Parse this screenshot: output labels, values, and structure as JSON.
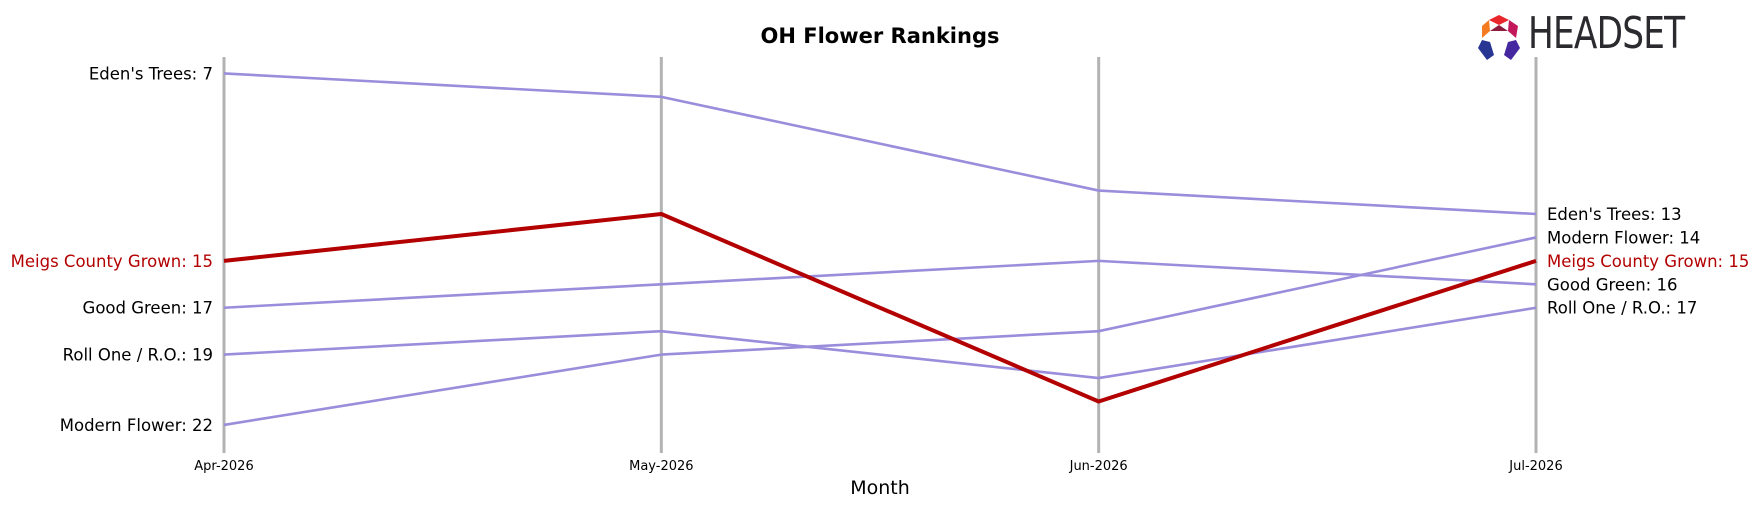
{
  "chart_data": {
    "type": "line",
    "title": "OH Flower Rankings",
    "xlabel": "Month",
    "ylabel": "",
    "categories": [
      "Apr-2026",
      "May-2026",
      "Jun-2026",
      "Jul-2026"
    ],
    "y_inverted": true,
    "ylim": [
      6.3,
      22.9
    ],
    "grid": false,
    "highlight_color": "#b30000",
    "base_color": "#9a8ddb",
    "series": [
      {
        "name": "Eden's Trees",
        "values": [
          7,
          8,
          12,
          13
        ],
        "highlight": false,
        "start_label": "Eden's Trees: 7",
        "end_label": "Eden's Trees: 13"
      },
      {
        "name": "Meigs County Grown",
        "values": [
          15,
          13,
          21,
          15
        ],
        "highlight": true,
        "start_label": "Meigs County Grown: 15",
        "end_label": "Meigs County Grown: 15"
      },
      {
        "name": "Good Green",
        "values": [
          17,
          16,
          15,
          16
        ],
        "highlight": false,
        "start_label": "Good Green: 17",
        "end_label": "Good Green: 16"
      },
      {
        "name": "Roll One / R.O.",
        "values": [
          19,
          18,
          20,
          17
        ],
        "highlight": false,
        "start_label": "Roll One / R.O.: 19",
        "end_label": "Roll One / R.O.: 17"
      },
      {
        "name": "Modern Flower",
        "values": [
          22,
          19,
          18,
          14
        ],
        "highlight": false,
        "start_label": "Modern Flower: 22",
        "end_label": "Modern Flower: 14"
      }
    ]
  },
  "logo": {
    "text": "HEADSET",
    "colors": [
      "#e8262b",
      "#f47b20",
      "#c2185b",
      "#7b1fa2",
      "#283593"
    ]
  }
}
